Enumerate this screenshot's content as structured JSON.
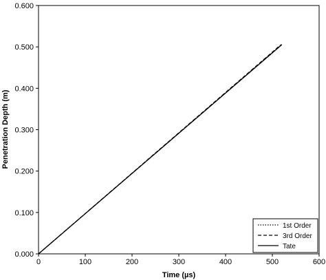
{
  "chart_data": {
    "type": "line",
    "title": "",
    "xlabel": "Time (µs)",
    "ylabel": "Penetration Depth (m)",
    "xlim": [
      0,
      600
    ],
    "ylim": [
      0,
      0.6
    ],
    "x_ticks": [
      "0",
      "100",
      "200",
      "300",
      "400",
      "500",
      "600"
    ],
    "y_ticks": [
      "0.000",
      "0.100",
      "0.200",
      "0.300",
      "0.400",
      "0.500",
      "0.600"
    ],
    "grid": false,
    "legend_position": "bottom-right",
    "series": [
      {
        "name": "1st Order",
        "style": "dotted",
        "color": "#000000",
        "x": [
          0,
          520
        ],
        "y": [
          0,
          0.506
        ]
      },
      {
        "name": "3rd Order",
        "style": "dashed",
        "color": "#000000",
        "x": [
          0,
          518
        ],
        "y": [
          0,
          0.505
        ]
      },
      {
        "name": "Tate",
        "style": "solid",
        "color": "#000000",
        "x": [
          0,
          520
        ],
        "y": [
          0,
          0.505
        ]
      }
    ]
  }
}
